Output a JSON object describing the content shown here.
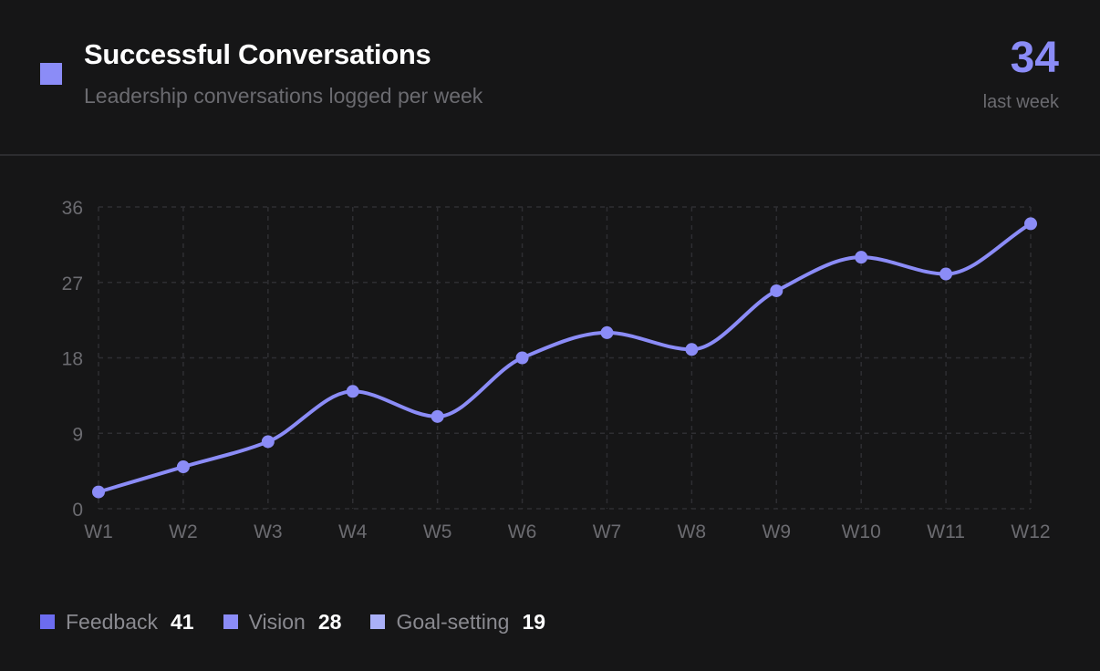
{
  "header": {
    "title": "Successful Conversations",
    "subtitle": "Leadership conversations logged per week",
    "kpi_value": "34",
    "kpi_label": "last week",
    "accent_color": "#8b8cf7"
  },
  "chart_data": {
    "type": "line",
    "categories": [
      "W1",
      "W2",
      "W3",
      "W4",
      "W5",
      "W6",
      "W7",
      "W8",
      "W9",
      "W10",
      "W11",
      "W12"
    ],
    "series": [
      {
        "values": [
          2,
          5,
          8,
          14,
          11,
          18,
          21,
          19,
          26,
          30,
          28,
          34
        ],
        "color": "#8b8cf7"
      }
    ],
    "yticks": [
      0,
      9,
      18,
      27,
      36
    ],
    "ylim": [
      0,
      36
    ],
    "grid": true,
    "title": "",
    "xlabel": "",
    "ylabel": ""
  },
  "legend": [
    {
      "label": "Feedback",
      "value": "41",
      "color": "#6c6cf0"
    },
    {
      "label": "Vision",
      "value": "28",
      "color": "#8b8cf7"
    },
    {
      "label": "Goal-setting",
      "value": "19",
      "color": "#aab0f8"
    }
  ]
}
